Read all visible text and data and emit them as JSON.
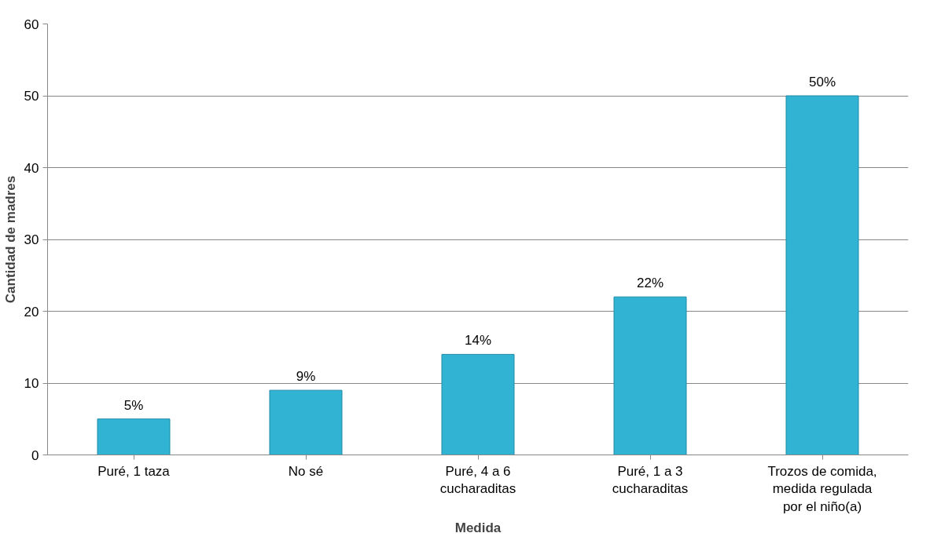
{
  "chart_data": {
    "type": "bar",
    "xlabel": "Medida",
    "ylabel": "Cantidad de madres",
    "categories": [
      "Puré, 1 taza",
      "No sé",
      "Puré, 4 a 6 cucharaditas",
      "Puré, 1 a 3 cucharaditas",
      "Trozos de comida, medida regulada por el niño(a)"
    ],
    "values": [
      5,
      9,
      14,
      22,
      50
    ],
    "value_labels": [
      "5%",
      "9%",
      "14%",
      "22%",
      "50%"
    ],
    "color": "#31b4d4",
    "ylim": [
      0,
      60
    ],
    "yticks": [
      0,
      10,
      20,
      30,
      40,
      50,
      60
    ],
    "grid": "y"
  }
}
